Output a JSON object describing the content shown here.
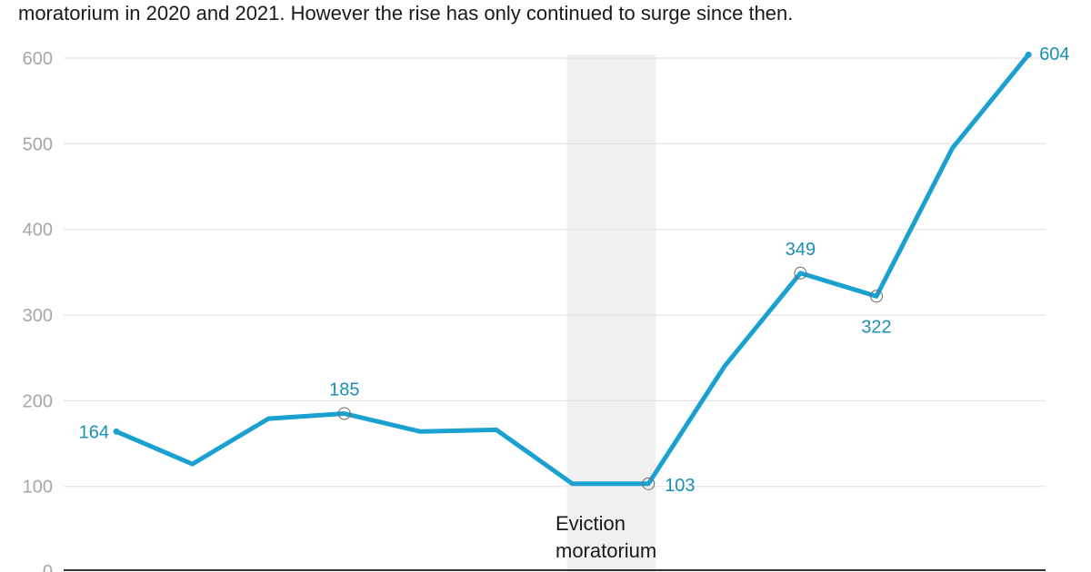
{
  "subtitle": "moratorium in 2020 and 2021. However the rise has only continued to surge since then.",
  "chart_data": {
    "type": "line",
    "title": "",
    "xlabel": "",
    "ylabel": "",
    "ylim": [
      0,
      600
    ],
    "yticks": [
      0,
      100,
      200,
      300,
      400,
      500,
      600
    ],
    "grid": true,
    "line_color": "#1ba1d0",
    "label_color": "#1a8fb5",
    "x": [
      0,
      1,
      2,
      3,
      4,
      5,
      6,
      7,
      8,
      9,
      10,
      11,
      12
    ],
    "series": [
      {
        "values": [
          164,
          126,
          179,
          185,
          164,
          166,
          103,
          103,
          240,
          349,
          322,
          495,
          604
        ]
      }
    ],
    "labeled_points": [
      {
        "index": 0,
        "text": "164",
        "marker": false
      },
      {
        "index": 3,
        "text": "185",
        "marker": true
      },
      {
        "index": 7,
        "text": "103",
        "marker": true
      },
      {
        "index": 9,
        "text": "349",
        "marker": true
      },
      {
        "index": 10,
        "text": "322",
        "marker": true
      },
      {
        "index": 12,
        "text": "604",
        "marker": false
      }
    ],
    "shaded_region": {
      "from_index": 6,
      "to_index": 7,
      "color": "#f0f0f0"
    },
    "annotation": {
      "lines": [
        "Eviction",
        "moratorium"
      ]
    }
  }
}
